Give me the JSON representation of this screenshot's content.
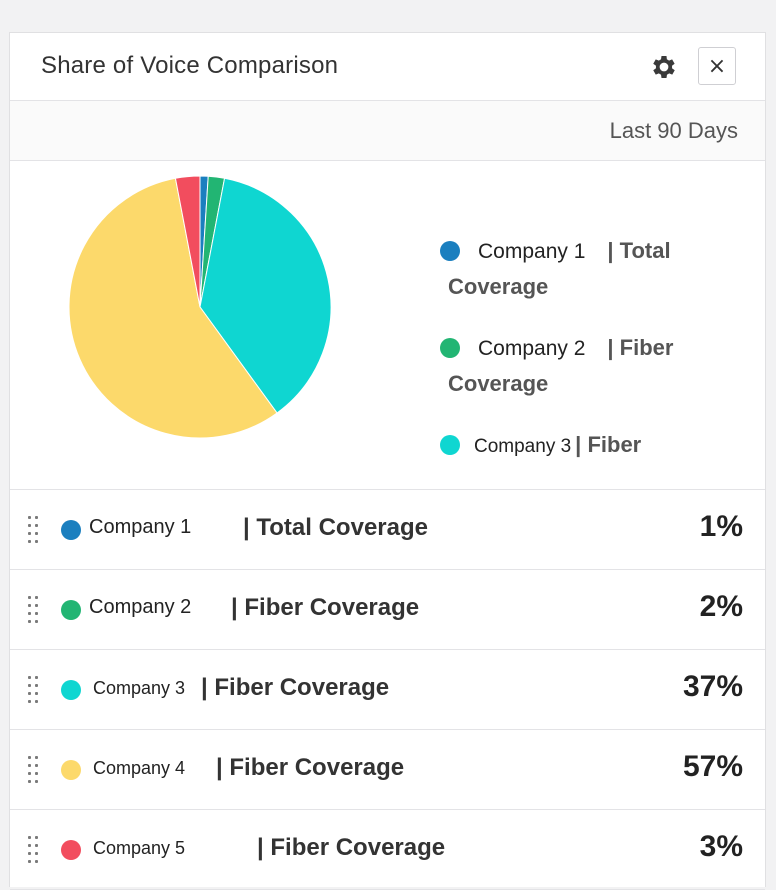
{
  "widget": {
    "title": "Share of Voice Comparison",
    "date_range": "Last 90 Days",
    "close_label": "×"
  },
  "legend": [
    {
      "name": "Company 1",
      "sep": "|",
      "type": "Total",
      "type2": "Coverage",
      "color": "#1b7fbf"
    },
    {
      "name": "Company 2",
      "sep": "|",
      "type": "Fiber",
      "type2": "Coverage",
      "color": "#22b573"
    },
    {
      "name": "Company 3",
      "sep": "|",
      "type": "Fiber",
      "type2": "",
      "color": "#0fd6d1"
    }
  ],
  "rows": [
    {
      "name": "Company 1",
      "label": "| Total Coverage",
      "pct": "1%",
      "color": "#1b7fbf"
    },
    {
      "name": "Company 2",
      "label": "| Fiber Coverage",
      "pct": "2%",
      "color": "#22b573"
    },
    {
      "name": "Company 3",
      "label": "| Fiber Coverage",
      "pct": "37%",
      "color": "#0fd6d1"
    },
    {
      "name": "Company 4",
      "label": "| Fiber Coverage",
      "pct": "57%",
      "color": "#fcd96b"
    },
    {
      "name": "Company 5",
      "label": "| Fiber Coverage",
      "pct": "3%",
      "color": "#f24d5e"
    }
  ],
  "chart_data": {
    "type": "pie",
    "labels": [
      "Company 1",
      "Company 2",
      "Company 3",
      "Company 4",
      "Company 5"
    ],
    "values": [
      1,
      2,
      37,
      57,
      3
    ],
    "colors": [
      "#1b7fbf",
      "#22b573",
      "#0fd6d1",
      "#fcd96b",
      "#f24d5e"
    ],
    "legend_position": "right"
  }
}
